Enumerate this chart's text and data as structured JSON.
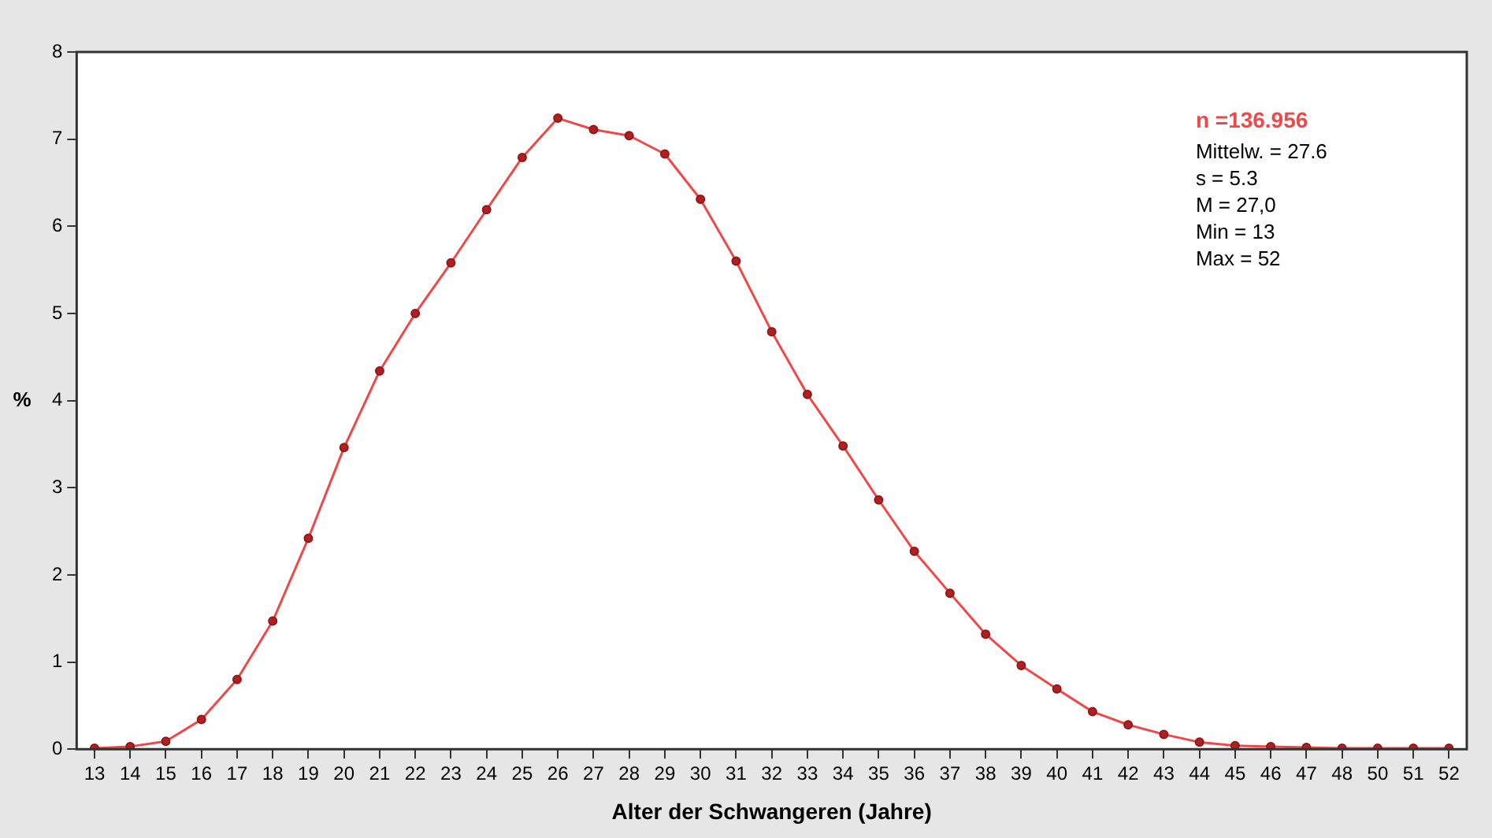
{
  "chart_data": {
    "type": "line",
    "xlabel": "Alter der Schwangeren (Jahre)",
    "ylabel": "%",
    "categories": [
      "13",
      "14",
      "15",
      "16",
      "17",
      "18",
      "19",
      "20",
      "21",
      "22",
      "23",
      "24",
      "25",
      "26",
      "27",
      "28",
      "29",
      "30",
      "31",
      "32",
      "33",
      "34",
      "35",
      "36",
      "37",
      "38",
      "39",
      "40",
      "41",
      "42",
      "43",
      "44",
      "45",
      "46",
      "47",
      "48",
      "50",
      "51",
      "52"
    ],
    "series": [
      {
        "color": "#f04848",
        "values": [
          0.01,
          0.03,
          0.09,
          0.34,
          0.8,
          1.47,
          2.42,
          3.46,
          4.34,
          5.0,
          5.58,
          6.19,
          6.79,
          7.24,
          7.11,
          7.04,
          6.83,
          6.31,
          5.6,
          4.79,
          4.07,
          3.48,
          2.86,
          2.27,
          1.79,
          1.32,
          0.96,
          0.69,
          0.43,
          0.28,
          0.17,
          0.08,
          0.04,
          0.03,
          0.02,
          0.01,
          0.01,
          0.01,
          0.01
        ]
      }
    ],
    "ylim": [
      0,
      8
    ],
    "yticks": [
      0,
      1,
      2,
      3,
      4,
      5,
      6,
      7,
      8
    ],
    "grid": false,
    "legend": false,
    "marker": "circle",
    "line_style": "solid",
    "annotations": [
      "n =136.956",
      "Mittelw. = 27.6",
      "s = 5.3",
      "M = 27,0",
      "Min = 13",
      "Max = 52"
    ]
  }
}
